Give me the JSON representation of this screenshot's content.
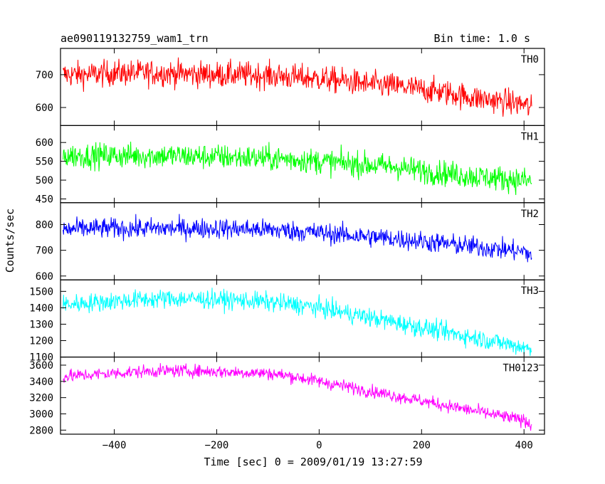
{
  "header": {
    "title": "ae090119132759_wam1_trn",
    "bin_time": "Bin time: 1.0 s"
  },
  "chart_data": {
    "type": "line",
    "xlabel": "Time [sec] 0 = 2009/01/19 13:27:59",
    "ylabel": "Counts/sec",
    "xlim": [
      -505,
      440
    ],
    "xticks": [
      -400,
      -200,
      0,
      200,
      400
    ],
    "x": [
      -500,
      -450,
      -400,
      -350,
      -300,
      -250,
      -200,
      -150,
      -100,
      -50,
      0,
      50,
      100,
      150,
      200,
      250,
      300,
      350,
      400,
      415
    ],
    "panels": [
      {
        "name": "TH0",
        "color": "#ff0000",
        "ylim": [
          545,
          780
        ],
        "yticks": [
          600,
          700
        ],
        "values": [
          700,
          700,
          705,
          705,
          705,
          702,
          700,
          700,
          698,
          692,
          688,
          680,
          670,
          665,
          655,
          645,
          630,
          620,
          610,
          595
        ],
        "noise": 38
      },
      {
        "name": "TH1",
        "color": "#00ff00",
        "ylim": [
          440,
          645
        ],
        "yticks": [
          450,
          500,
          550,
          600
        ],
        "values": [
          565,
          565,
          565,
          565,
          565,
          563,
          562,
          560,
          558,
          555,
          550,
          545,
          540,
          535,
          525,
          518,
          510,
          505,
          500,
          495
        ],
        "noise": 32
      },
      {
        "name": "TH2",
        "color": "#0000ff",
        "ylim": [
          585,
          885
        ],
        "yticks": [
          600,
          700,
          800
        ],
        "values": [
          780,
          785,
          785,
          785,
          785,
          785,
          785,
          783,
          780,
          775,
          768,
          760,
          752,
          745,
          735,
          725,
          715,
          705,
          695,
          680
        ],
        "noise": 38
      },
      {
        "name": "TH3",
        "color": "#00ffff",
        "ylim": [
          1100,
          1570
        ],
        "yticks": [
          1100,
          1200,
          1300,
          1400,
          1500
        ],
        "values": [
          1420,
          1430,
          1440,
          1450,
          1455,
          1455,
          1450,
          1445,
          1435,
          1420,
          1400,
          1370,
          1340,
          1310,
          1280,
          1250,
          1220,
          1190,
          1160,
          1140
        ],
        "noise": 55
      },
      {
        "name": "TH0123",
        "color": "#ff00ff",
        "ylim": [
          2750,
          3700
        ],
        "yticks": [
          2800,
          3000,
          3200,
          3400,
          3600
        ],
        "values": [
          3460,
          3480,
          3500,
          3520,
          3530,
          3530,
          3520,
          3510,
          3500,
          3460,
          3400,
          3340,
          3280,
          3220,
          3160,
          3100,
          3040,
          2980,
          2920,
          2870
        ],
        "noise": 75
      }
    ]
  }
}
